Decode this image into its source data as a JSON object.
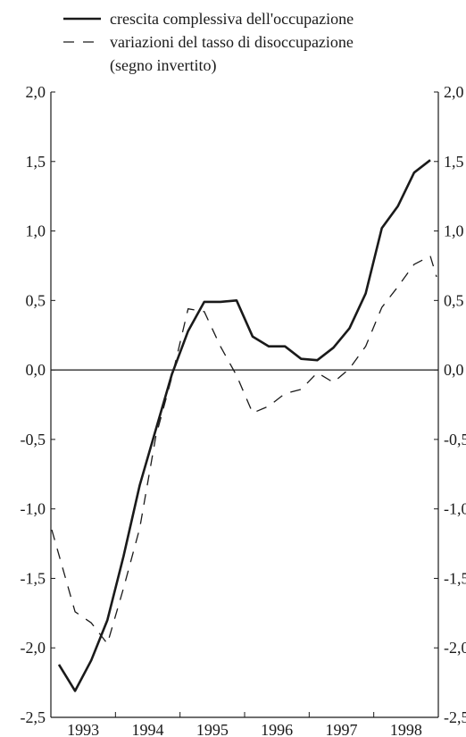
{
  "chart_data": {
    "type": "line",
    "xlabel": "",
    "ylabel": "",
    "ylim": [
      -2.5,
      2.0
    ],
    "y_ticks": [
      -2.5,
      -2.0,
      -1.5,
      -1.0,
      -0.5,
      0.0,
      0.5,
      1.0,
      1.5,
      2.0
    ],
    "y_tick_labels": [
      "-2,5",
      "-2,0",
      "-1,5",
      "-1,0",
      "-0,5",
      "0,0",
      "0,5",
      "1,0",
      "1,5",
      "2,0"
    ],
    "x_tick_labels": [
      "1993",
      "1994",
      "1995",
      "1996",
      "1997",
      "1998"
    ],
    "x_categories": [
      "1993 Q1",
      "1993 Q2",
      "1993 Q3",
      "1993 Q4",
      "1994 Q1",
      "1994 Q2",
      "1994 Q3",
      "1994 Q4",
      "1995 Q1",
      "1995 Q2",
      "1995 Q3",
      "1995 Q4",
      "1996 Q1",
      "1996 Q2",
      "1996 Q3",
      "1996 Q4",
      "1997 Q1",
      "1997 Q2",
      "1997 Q3",
      "1997 Q4",
      "1998 Q1",
      "1998 Q2",
      "1998 Q3",
      "1998 Q4"
    ],
    "zero_line": true,
    "grid": false,
    "legend_position": "top",
    "series": [
      {
        "name": "crescita complessiva dell'occupazione",
        "style": "solid",
        "values": [
          -2.12,
          -2.31,
          -2.09,
          -1.8,
          -1.34,
          -0.83,
          -0.43,
          -0.03,
          0.28,
          0.49,
          0.49,
          0.5,
          0.24,
          0.17,
          0.17,
          0.08,
          0.07,
          0.16,
          0.3,
          0.55,
          1.02,
          1.18,
          1.42,
          1.51
        ]
      },
      {
        "name": "variazioni del tasso di disoccupazione\n(segno invertito)",
        "style": "dashed",
        "values": [
          null,
          -1.74,
          -1.82,
          -1.97,
          -1.57,
          -1.14,
          -0.48,
          -0.05,
          0.44,
          0.42,
          0.17,
          -0.04,
          -0.31,
          -0.26,
          -0.17,
          -0.14,
          -0.02,
          -0.09,
          0.01,
          0.17,
          0.45,
          0.6,
          0.76,
          0.82
        ]
      }
    ]
  },
  "legend": {
    "solid_label": "crescita complessiva dell'occupazione",
    "dashed_label_line1": "variazioni del tasso di disoccupazione",
    "dashed_label_line2": "(segno invertito)"
  },
  "colors": {
    "line": "#1a1a1a",
    "background": "#ffffff"
  }
}
